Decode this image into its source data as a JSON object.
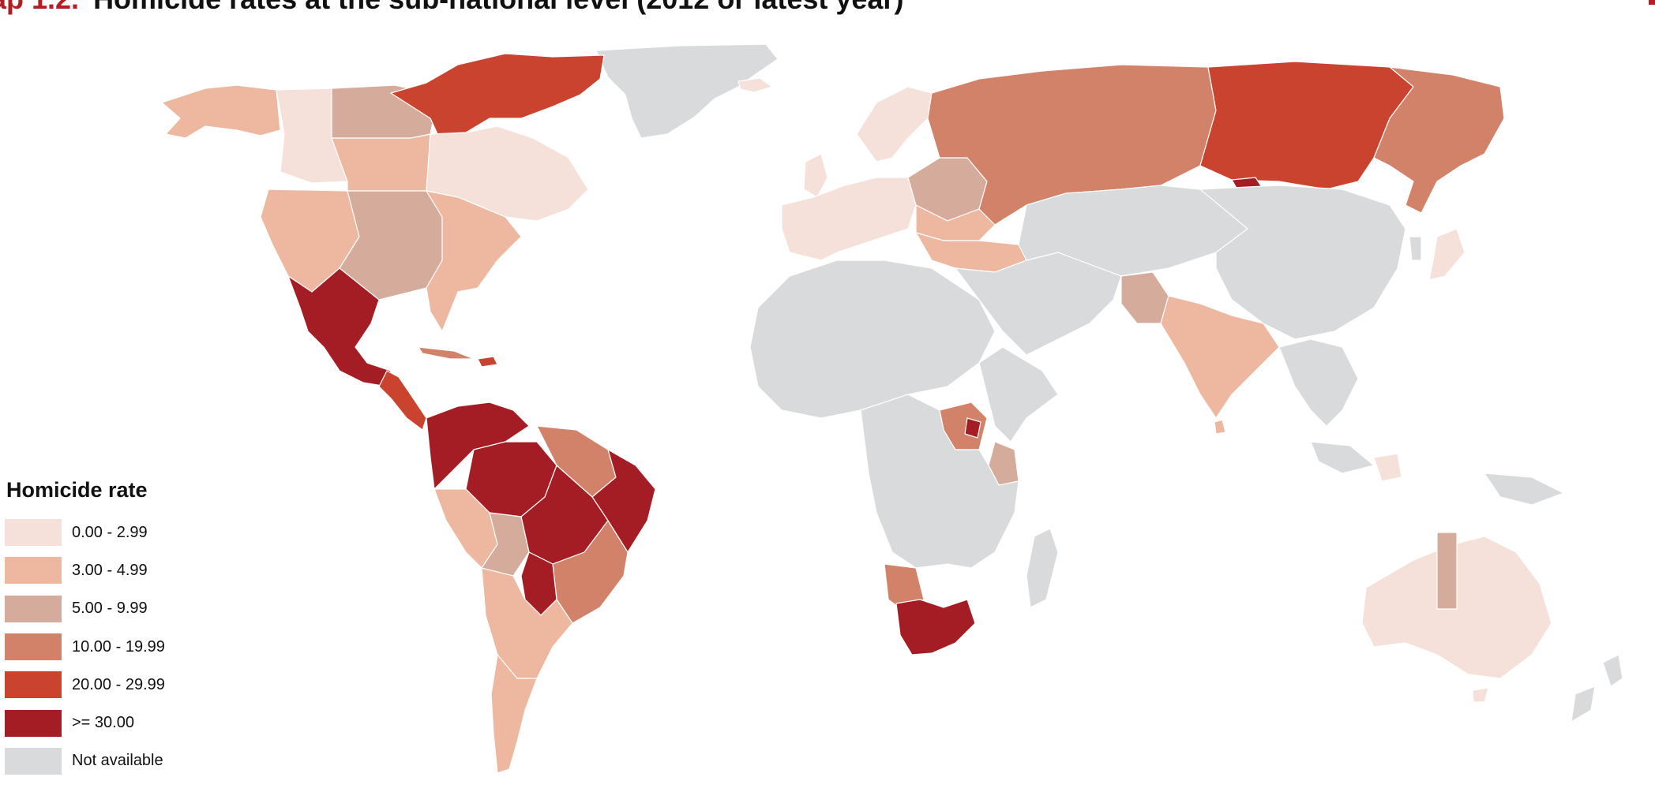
{
  "title": {
    "prefix": "ap 1.2.",
    "text": "Homicide rates at the sub-national level (2012 or latest year)"
  },
  "legend": {
    "title": "Homicide rate",
    "items": [
      {
        "label": "0.00 - 2.99",
        "color": "#f5e1da"
      },
      {
        "label": "3.00 - 4.99",
        "color": "#edb7a0"
      },
      {
        "label": "5.00 - 9.99",
        "color": "#d5ab9c"
      },
      {
        "label": "10.00 - 19.99",
        "color": "#d3826a"
      },
      {
        "label": "20.00 - 29.99",
        "color": "#c9432f"
      },
      {
        "label": ">= 30.00",
        "color": "#a51d24"
      },
      {
        "label": "Not available",
        "color": "#d9dadb"
      }
    ]
  },
  "colors": {
    "title_accent": "#b01f24",
    "boundary": "#ffffff"
  }
}
